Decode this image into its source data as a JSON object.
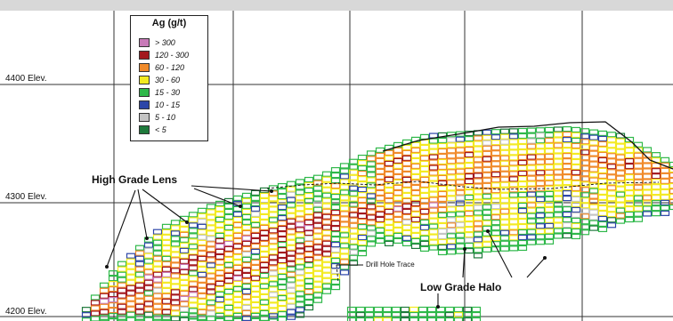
{
  "elevations": [
    "4400 Elev.",
    "4300 Elev.",
    "4200 Elev."
  ],
  "legend": {
    "title": "Ag  (g/t)",
    "items": [
      {
        "label": "> 300",
        "color": "#c87ab8"
      },
      {
        "label": "120 - 300",
        "color": "#a3181e"
      },
      {
        "label": "60 - 120",
        "color": "#f08a2a"
      },
      {
        "label": "30 - 60",
        "color": "#f3ea22"
      },
      {
        "label": "15 - 30",
        "color": "#2fb84a"
      },
      {
        "label": "10 - 15",
        "color": "#2d46a8"
      },
      {
        "label": "5 - 10",
        "color": "#c4c4c4"
      },
      {
        "label": "< 5",
        "color": "#1f7a3c"
      }
    ]
  },
  "annotations": {
    "high_grade": "High Grade Lens",
    "low_grade": "Low Grade Halo",
    "drill_trace": "Drill Hole Trace"
  }
}
